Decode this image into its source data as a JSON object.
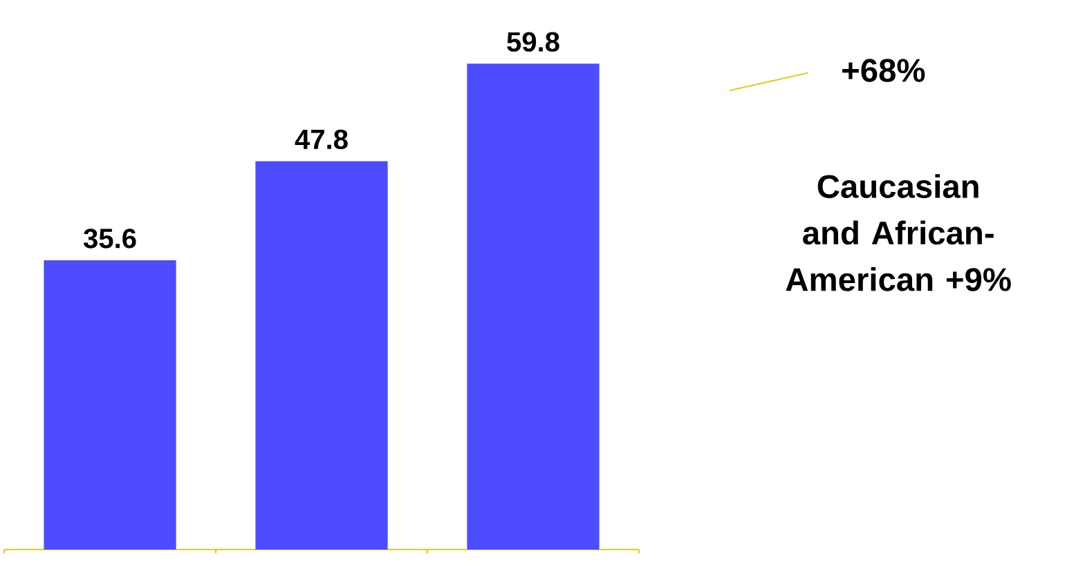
{
  "chart_data": {
    "type": "bar",
    "categories": [
      null,
      null,
      null
    ],
    "values": [
      35.6,
      47.8,
      59.8
    ],
    "color": "#4d4dff",
    "data_labels": true,
    "annotations": [
      "+68%",
      "Caucasian and African-American +9%"
    ]
  }
}
